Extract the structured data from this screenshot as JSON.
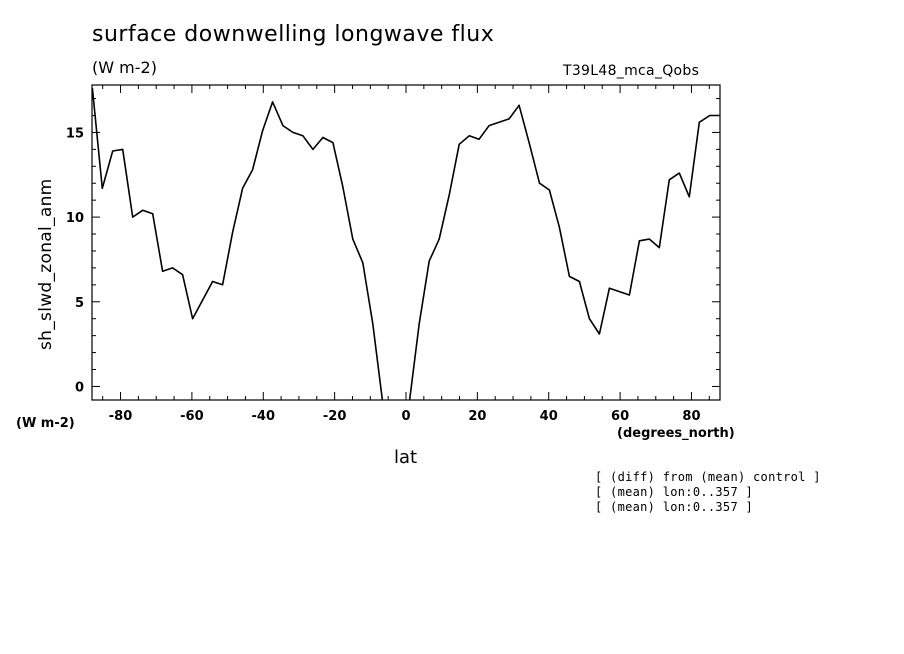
{
  "title": "surface downwelling longwave flux",
  "units": "(W m-2)",
  "run_name": "T39L48_mca_Qobs",
  "y_units": "(W m-2)",
  "x_units": "(degrees_north)",
  "notes": [
    "[ (diff) from (mean) control ]",
    "[ (mean) lon:0..357 ]",
    "[ (mean) lon:0..357 ]"
  ],
  "chart_data": {
    "type": "line",
    "title": "surface downwelling longwave flux",
    "xlabel": "lat",
    "ylabel": "sh_slwd_zonal_anm",
    "xlim": [
      -88,
      88
    ],
    "ylim": [
      -0.8,
      17.8
    ],
    "grid": false,
    "line_color": "#000000",
    "x_ticks": [
      -80,
      -60,
      -40,
      -20,
      0,
      20,
      40,
      60,
      80
    ],
    "x_tick_labels": [
      "-80",
      "-60",
      "-40",
      "-20",
      "0",
      "20",
      "40",
      "60",
      "80"
    ],
    "y_ticks": [
      0,
      5,
      10,
      15
    ],
    "y_tick_labels": [
      "0",
      "5",
      "10",
      "15"
    ],
    "series": [
      {
        "x": [
          -87.9,
          -85.1,
          -82.2,
          -79.4,
          -76.6,
          -73.8,
          -71.0,
          -68.2,
          -65.4,
          -62.6,
          -59.8,
          -57.0,
          -54.2,
          -51.4,
          -48.6,
          -45.8,
          -43.0,
          -40.2,
          -37.4,
          -34.5,
          -31.7,
          -28.9,
          -26.1,
          -23.3,
          -20.5,
          -17.7,
          -14.9,
          -12.1,
          -9.3,
          -6.5,
          -3.7,
          -0.9,
          0.9,
          3.7,
          6.5,
          9.3,
          12.1,
          14.9,
          17.7,
          20.5,
          23.3,
          26.1,
          28.9,
          31.7,
          34.5,
          37.4,
          40.2,
          43.0,
          45.8,
          48.6,
          51.4,
          54.2,
          57.0,
          59.8,
          62.6,
          65.4,
          68.2,
          71.0,
          73.8,
          76.6,
          79.4,
          82.2,
          85.1,
          87.9
        ],
        "values": [
          17.6,
          11.7,
          13.9,
          14.0,
          10.0,
          10.4,
          10.2,
          6.8,
          7.0,
          6.6,
          4.0,
          5.1,
          6.2,
          6.0,
          9.1,
          11.7,
          12.8,
          15.1,
          16.8,
          15.4,
          15.0,
          14.8,
          14.0,
          14.7,
          14.4,
          11.8,
          8.7,
          7.3,
          3.7,
          -1.0,
          -1.0,
          -1.0,
          -1.0,
          3.7,
          7.4,
          8.7,
          11.3,
          14.3,
          14.8,
          14.6,
          15.4,
          15.6,
          15.8,
          16.6,
          14.4,
          12.0,
          11.6,
          9.4,
          6.5,
          6.2,
          4.0,
          3.1,
          5.8,
          5.6,
          5.4,
          8.6,
          8.7,
          8.2,
          12.2,
          12.6,
          11.2,
          15.6,
          16.0,
          16.0
        ]
      }
    ]
  }
}
